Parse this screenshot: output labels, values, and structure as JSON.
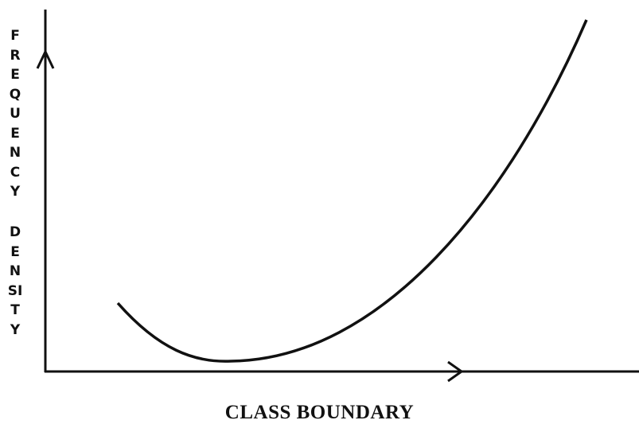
{
  "y_axis_label": {
    "line1": "FREQUENCY",
    "line2": "DENSITY"
  },
  "x_axis_label": "CLASS BOUNDARY"
}
